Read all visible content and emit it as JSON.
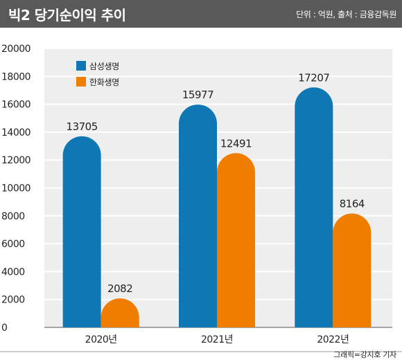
{
  "header": {
    "title": "빅2 당기순이익 추이",
    "source": "단위 : 억원, 출처 : 금융감독원"
  },
  "credit": "그래픽=강지호  기자",
  "colors": {
    "header_bg": "#595959",
    "plot_bg": "#eeeeee",
    "gridline": "#ffffff",
    "samsung": "#0f78b4",
    "hanwha": "#ef7d00"
  },
  "chart_data": {
    "type": "bar",
    "categories": [
      "2020년",
      "2021년",
      "2022년"
    ],
    "series": [
      {
        "name": "삼성생명",
        "values": [
          13705,
          15977,
          17207
        ],
        "color": "#0f78b4"
      },
      {
        "name": "한화생명",
        "values": [
          2082,
          12491,
          8164
        ],
        "color": "#ef7d00"
      }
    ],
    "ylim": [
      0,
      20000
    ],
    "yticks": [
      0,
      2000,
      4000,
      6000,
      8000,
      10000,
      12000,
      14000,
      16000,
      18000,
      20000
    ],
    "grid": true,
    "legend": "top-left",
    "data_labels": true,
    "title": "",
    "xlabel": "",
    "ylabel": ""
  }
}
